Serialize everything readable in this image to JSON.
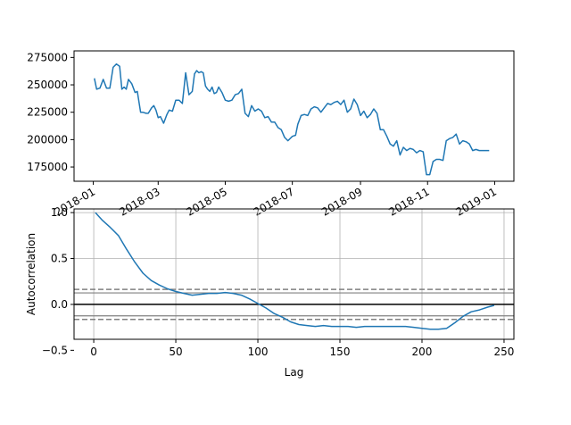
{
  "chart_data": [
    {
      "type": "line",
      "title": "",
      "xlabel": "",
      "ylabel": "",
      "x_tick_labels": [
        "2018-01",
        "2018-03",
        "2018-05",
        "2018-07",
        "2018-09",
        "2018-11",
        "2019-01"
      ],
      "y_tick_labels": [
        "175000",
        "200000",
        "225000",
        "250000",
        "275000"
      ],
      "ylim": [
        162000,
        281000
      ],
      "grid": false,
      "line_color": "#1f77b4",
      "series": [
        {
          "x": [
            "2018-01-02",
            "2018-01-04",
            "2018-01-07",
            "2018-01-10",
            "2018-01-13",
            "2018-01-16",
            "2018-01-19",
            "2018-01-22",
            "2018-01-25",
            "2018-01-27",
            "2018-01-29",
            "2018-01-31",
            "2018-02-02",
            "2018-02-05",
            "2018-02-08",
            "2018-02-10",
            "2018-02-13",
            "2018-02-15",
            "2018-02-18",
            "2018-02-20",
            "2018-02-23",
            "2018-02-25",
            "2018-02-27",
            "2018-03-01",
            "2018-03-03",
            "2018-03-06",
            "2018-03-09",
            "2018-03-11",
            "2018-03-14",
            "2018-03-17",
            "2018-03-20",
            "2018-03-23",
            "2018-03-26",
            "2018-03-29",
            "2018-04-01",
            "2018-04-03",
            "2018-04-05",
            "2018-04-07",
            "2018-04-09",
            "2018-04-11",
            "2018-04-13",
            "2018-04-15",
            "2018-04-17",
            "2018-04-19",
            "2018-04-21",
            "2018-04-23",
            "2018-04-25",
            "2018-04-28",
            "2018-05-01",
            "2018-05-04",
            "2018-05-07",
            "2018-05-10",
            "2018-05-13",
            "2018-05-16",
            "2018-05-19",
            "2018-05-22",
            "2018-05-25",
            "2018-05-28",
            "2018-05-31",
            "2018-06-03",
            "2018-06-06",
            "2018-06-09",
            "2018-06-12",
            "2018-06-15",
            "2018-06-18",
            "2018-06-21",
            "2018-06-24",
            "2018-06-27",
            "2018-07-01",
            "2018-07-04",
            "2018-07-06",
            "2018-07-09",
            "2018-07-12",
            "2018-07-15",
            "2018-07-18",
            "2018-07-21",
            "2018-07-24",
            "2018-07-27",
            "2018-07-30",
            "2018-08-02",
            "2018-08-05",
            "2018-08-08",
            "2018-08-11",
            "2018-08-14",
            "2018-08-17",
            "2018-08-20",
            "2018-08-23",
            "2018-08-26",
            "2018-08-29",
            "2018-09-01",
            "2018-09-04",
            "2018-09-07",
            "2018-09-10",
            "2018-09-13",
            "2018-09-16",
            "2018-09-19",
            "2018-09-22",
            "2018-09-25",
            "2018-09-28",
            "2018-10-01",
            "2018-10-04",
            "2018-10-07",
            "2018-10-10",
            "2018-10-13",
            "2018-10-16",
            "2018-10-19",
            "2018-10-22",
            "2018-10-25",
            "2018-10-28",
            "2018-10-31",
            "2018-11-03",
            "2018-11-06",
            "2018-11-09",
            "2018-11-12",
            "2018-11-15",
            "2018-11-18",
            "2018-11-21",
            "2018-11-24",
            "2018-11-27",
            "2018-11-30",
            "2018-12-03",
            "2018-12-06",
            "2018-12-09",
            "2018-12-12",
            "2018-12-15",
            "2018-12-18",
            "2018-12-21",
            "2018-12-24",
            "2018-12-27"
          ],
          "values": [
            256000,
            246000,
            247000,
            255000,
            247000,
            247000,
            266000,
            269000,
            267000,
            246000,
            248000,
            246000,
            255000,
            251000,
            243000,
            244000,
            225000,
            225000,
            224000,
            224000,
            229000,
            231000,
            227000,
            220000,
            221000,
            215000,
            223000,
            227000,
            226000,
            236000,
            236000,
            233000,
            261000,
            241000,
            244000,
            260000,
            263000,
            261000,
            262000,
            261000,
            249000,
            246000,
            244000,
            248000,
            242000,
            243000,
            248000,
            243000,
            236000,
            235000,
            236000,
            241000,
            242000,
            246000,
            224000,
            221000,
            231000,
            226000,
            228000,
            226000,
            220000,
            221000,
            216000,
            216000,
            211000,
            209000,
            202000,
            199000,
            203000,
            204000,
            214000,
            222000,
            223000,
            222000,
            228000,
            230000,
            229000,
            225000,
            229000,
            233000,
            232000,
            234000,
            235000,
            232000,
            236000,
            225000,
            228000,
            237000,
            232000,
            222000,
            226000,
            220000,
            223000,
            228000,
            224000,
            209000,
            209000,
            203000,
            196000,
            194000,
            199000,
            186000,
            193000,
            190000,
            192000,
            191000,
            188000,
            190000,
            189000,
            168000,
            168000,
            180000,
            182000,
            182000,
            181000,
            199000,
            201000,
            202000,
            205000,
            196000,
            199000,
            198000,
            196000,
            190000,
            191000,
            190000,
            190000,
            190000,
            190000
          ]
        }
      ]
    },
    {
      "type": "line",
      "title": "",
      "xlabel": "Lag",
      "ylabel": "Autocorrelation",
      "x_tick_labels": [
        "0",
        "50",
        "100",
        "150",
        "200",
        "250"
      ],
      "y_tick_labels": [
        "−0.5",
        "0.0",
        "0.5",
        "1.0"
      ],
      "xlim": [
        -12,
        256
      ],
      "ylim": [
        -0.38,
        1.04
      ],
      "grid": true,
      "confidence_bands": [
        0.125,
        0.164
      ],
      "line_color": "#1f77b4",
      "series": [
        {
          "x": [
            1,
            5,
            10,
            15,
            20,
            25,
            30,
            35,
            40,
            45,
            50,
            55,
            60,
            65,
            70,
            75,
            80,
            85,
            90,
            95,
            100,
            105,
            110,
            115,
            120,
            125,
            130,
            135,
            140,
            145,
            150,
            155,
            160,
            165,
            170,
            175,
            180,
            185,
            190,
            195,
            200,
            205,
            210,
            215,
            220,
            225,
            230,
            235,
            240,
            244
          ],
          "values": [
            1.0,
            0.92,
            0.84,
            0.75,
            0.6,
            0.46,
            0.34,
            0.26,
            0.21,
            0.17,
            0.14,
            0.12,
            0.1,
            0.11,
            0.12,
            0.12,
            0.13,
            0.12,
            0.1,
            0.06,
            0.01,
            -0.04,
            -0.1,
            -0.14,
            -0.19,
            -0.22,
            -0.23,
            -0.24,
            -0.23,
            -0.24,
            -0.24,
            -0.24,
            -0.25,
            -0.24,
            -0.24,
            -0.24,
            -0.24,
            -0.24,
            -0.24,
            -0.25,
            -0.26,
            -0.27,
            -0.27,
            -0.26,
            -0.2,
            -0.13,
            -0.08,
            -0.06,
            -0.03,
            -0.01
          ]
        }
      ]
    }
  ]
}
